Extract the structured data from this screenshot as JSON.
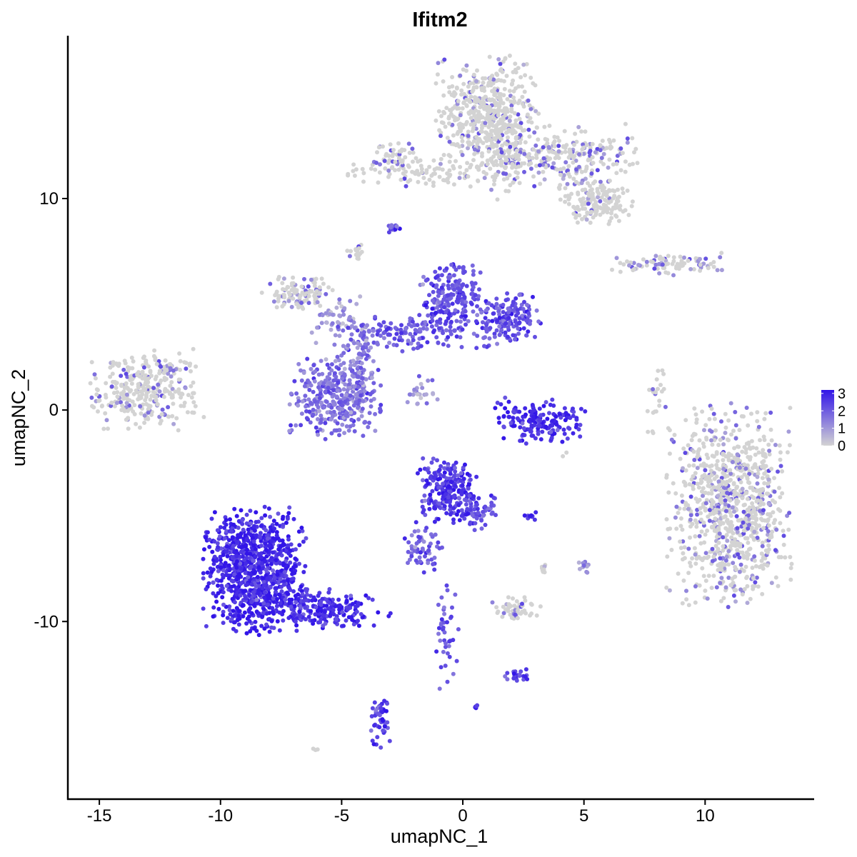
{
  "chart_data": {
    "type": "scatter",
    "title": "Ifitm2",
    "xlabel": "umapNC_1",
    "ylabel": "umapNC_2",
    "xlim": [
      -16.3,
      14.5
    ],
    "ylim": [
      -18.4,
      17.7
    ],
    "x_ticks": [
      -15,
      -10,
      -5,
      0,
      5,
      10
    ],
    "x_tick_labels": [
      "-15",
      "-10",
      "-5",
      "0",
      "5",
      "10"
    ],
    "y_ticks": [
      -10,
      0,
      10
    ],
    "y_tick_labels": [
      "-10",
      "0",
      "10"
    ],
    "grid": false,
    "legend": {
      "position": "right",
      "type": "colorbar",
      "labels": [
        "3",
        "2",
        "1",
        "0"
      ],
      "range": [
        0,
        3.2
      ],
      "low_color": "#d3d3d3",
      "high_color": "#3215e8"
    },
    "clusters": [
      {
        "cx": -13.0,
        "cy": 1.0,
        "sx": 1.1,
        "sy": 0.9,
        "n": 320,
        "expr": 0.35
      },
      {
        "cx": 11.0,
        "cy": -4.5,
        "sx": 1.2,
        "sy": 2.2,
        "n": 900,
        "expr": 0.45
      },
      {
        "cx": 1.0,
        "cy": 14.0,
        "sx": 1.0,
        "sy": 1.3,
        "n": 500,
        "expr": 0.35
      },
      {
        "cx": 4.0,
        "cy": 12.0,
        "sx": 1.5,
        "sy": 0.7,
        "n": 260,
        "expr": 0.55
      },
      {
        "cx": 5.5,
        "cy": 9.8,
        "sx": 0.7,
        "sy": 0.5,
        "n": 150,
        "expr": 0.25
      },
      {
        "cx": -1.5,
        "cy": 11.2,
        "sx": 1.5,
        "sy": 0.3,
        "n": 90,
        "expr": 0.2
      },
      {
        "cx": -2.7,
        "cy": 11.8,
        "sx": 0.4,
        "sy": 0.4,
        "n": 50,
        "expr": 0.45
      },
      {
        "cx": 1.7,
        "cy": 12.0,
        "sx": 0.4,
        "sy": 1.0,
        "n": 70,
        "expr": 0.25
      },
      {
        "cx": 8.5,
        "cy": 6.9,
        "sx": 1.1,
        "sy": 0.25,
        "n": 90,
        "expr": 0.5
      },
      {
        "cx": -2.9,
        "cy": 8.6,
        "sx": 0.15,
        "sy": 0.1,
        "n": 20,
        "expr": 2.2
      },
      {
        "cx": -4.5,
        "cy": 7.5,
        "sx": 0.2,
        "sy": 0.2,
        "n": 15,
        "expr": 0.3
      },
      {
        "cx": -6.8,
        "cy": 5.5,
        "sx": 0.7,
        "sy": 0.4,
        "n": 110,
        "expr": 0.55
      },
      {
        "cx": -5.2,
        "cy": 4.3,
        "sx": 0.5,
        "sy": 0.6,
        "n": 55,
        "expr": 1.0
      },
      {
        "cx": -0.5,
        "cy": 5.2,
        "sx": 0.6,
        "sy": 0.8,
        "n": 200,
        "expr": 2.3
      },
      {
        "cx": 1.8,
        "cy": 4.2,
        "sx": 0.7,
        "sy": 0.6,
        "n": 170,
        "expr": 2.2
      },
      {
        "cx": -2.5,
        "cy": 3.6,
        "sx": 1.3,
        "sy": 0.4,
        "n": 130,
        "expr": 2.0
      },
      {
        "cx": -4.3,
        "cy": 2.0,
        "sx": 0.4,
        "sy": 1.0,
        "n": 110,
        "expr": 1.3
      },
      {
        "cx": -5.3,
        "cy": 0.6,
        "sx": 0.9,
        "sy": 0.9,
        "n": 320,
        "expr": 1.7
      },
      {
        "cx": -1.8,
        "cy": 0.8,
        "sx": 0.4,
        "sy": 0.4,
        "n": 25,
        "expr": 1.1
      },
      {
        "cx": 3.2,
        "cy": -0.5,
        "sx": 0.9,
        "sy": 0.5,
        "n": 170,
        "expr": 2.8
      },
      {
        "cx": 8.0,
        "cy": 0.3,
        "sx": 0.2,
        "sy": 0.8,
        "n": 25,
        "expr": 0.3
      },
      {
        "cx": -0.6,
        "cy": -3.8,
        "sx": 0.6,
        "sy": 0.7,
        "n": 240,
        "expr": 2.6
      },
      {
        "cx": 0.7,
        "cy": -4.8,
        "sx": 0.4,
        "sy": 0.4,
        "n": 50,
        "expr": 2.3
      },
      {
        "cx": -1.7,
        "cy": -6.6,
        "sx": 0.45,
        "sy": 0.6,
        "n": 60,
        "expr": 2.0
      },
      {
        "cx": 2.8,
        "cy": -5.0,
        "sx": 0.15,
        "sy": 0.1,
        "n": 10,
        "expr": 2.8
      },
      {
        "cx": -8.6,
        "cy": -7.6,
        "sx": 1.0,
        "sy": 1.4,
        "n": 900,
        "expr": 2.9
      },
      {
        "cx": -5.6,
        "cy": -9.4,
        "sx": 1.2,
        "sy": 0.45,
        "n": 200,
        "expr": 2.8
      },
      {
        "cx": 2.2,
        "cy": -9.4,
        "sx": 0.5,
        "sy": 0.25,
        "n": 55,
        "expr": 0.45
      },
      {
        "cx": 3.3,
        "cy": -7.5,
        "sx": 0.1,
        "sy": 0.2,
        "n": 8,
        "expr": 0.7
      },
      {
        "cx": 5.0,
        "cy": -7.3,
        "sx": 0.1,
        "sy": 0.25,
        "n": 12,
        "expr": 1.0
      },
      {
        "cx": -0.6,
        "cy": -10.8,
        "sx": 0.3,
        "sy": 1.2,
        "n": 40,
        "expr": 2.0
      },
      {
        "cx": 2.2,
        "cy": -12.5,
        "sx": 0.3,
        "sy": 0.15,
        "n": 20,
        "expr": 2.4
      },
      {
        "cx": -3.4,
        "cy": -14.7,
        "sx": 0.2,
        "sy": 0.6,
        "n": 50,
        "expr": 2.6
      },
      {
        "cx": 0.55,
        "cy": -14.0,
        "sx": 0.05,
        "sy": 0.05,
        "n": 5,
        "expr": 3.0
      },
      {
        "cx": -6.1,
        "cy": -16.0,
        "sx": 0.05,
        "sy": 0.05,
        "n": 3,
        "expr": 0.9
      },
      {
        "cx": 4.2,
        "cy": -2.1,
        "sx": 0.05,
        "sy": 0.05,
        "n": 2,
        "expr": 0.3
      }
    ]
  }
}
